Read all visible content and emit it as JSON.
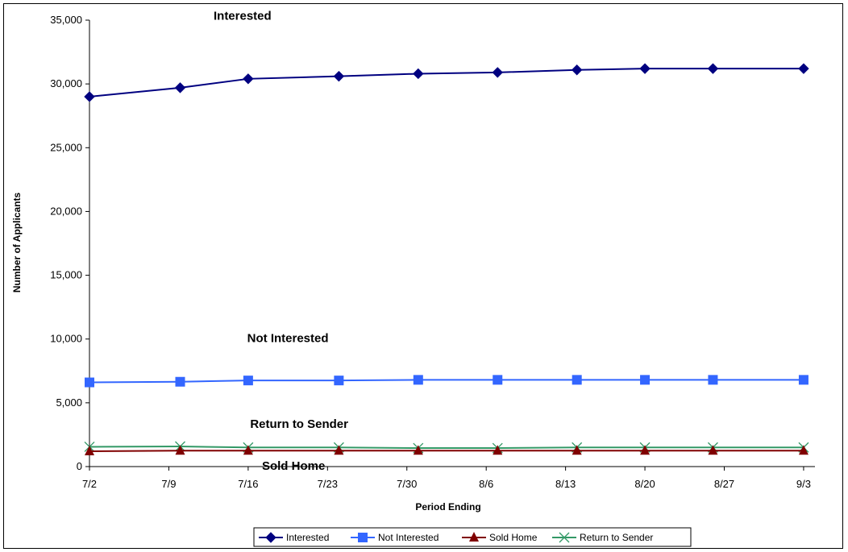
{
  "chart_data": {
    "type": "line",
    "title": "",
    "xlabel": "Period Ending",
    "ylabel": "Number of Applicants",
    "ylim": [
      0,
      35000
    ],
    "yticks": [
      "0",
      "5,000",
      "10,000",
      "15,000",
      "20,000",
      "25,000",
      "30,000",
      "35,000"
    ],
    "ytick_values": [
      0,
      5000,
      10000,
      15000,
      20000,
      25000,
      30000,
      35000
    ],
    "xticks": [
      "7/2",
      "7/9",
      "7/16",
      "7/23",
      "7/30",
      "8/6",
      "8/13",
      "8/20",
      "8/27",
      "9/3"
    ],
    "xtick_days": [
      0,
      7,
      14,
      21,
      28,
      35,
      42,
      49,
      56,
      63
    ],
    "xlim_days": [
      0,
      64
    ],
    "x_days": [
      0,
      8,
      14,
      22,
      29,
      36,
      43,
      49,
      55,
      63
    ],
    "grid": false,
    "legend_position": "bottom",
    "series": [
      {
        "name": "Interested",
        "color": "#000080",
        "marker": "diamond",
        "values": [
          29000,
          29700,
          30400,
          30600,
          30800,
          30900,
          31100,
          31200,
          31200,
          31200
        ]
      },
      {
        "name": "Not Interested",
        "color": "#3366ff",
        "marker": "square",
        "values": [
          6600,
          6650,
          6750,
          6750,
          6800,
          6800,
          6800,
          6800,
          6800,
          6800
        ]
      },
      {
        "name": "Sold Home",
        "color": "#800000",
        "marker": "triangle",
        "values": [
          1200,
          1250,
          1250,
          1250,
          1250,
          1250,
          1250,
          1250,
          1250,
          1250
        ]
      },
      {
        "name": "Return to Sender",
        "color": "#339966",
        "marker": "x",
        "values": [
          1550,
          1580,
          1500,
          1500,
          1450,
          1450,
          1500,
          1500,
          1500,
          1500
        ]
      }
    ],
    "annotations": [
      {
        "text": "Interested",
        "x_day": 13.5,
        "y": 35300
      },
      {
        "text": "Not Interested",
        "x_day": 17.5,
        "y": 10000
      },
      {
        "text": "Return to Sender",
        "x_day": 18.5,
        "y": 3300
      },
      {
        "text": "Sold Home",
        "x_day": 18,
        "y": 0
      }
    ]
  }
}
